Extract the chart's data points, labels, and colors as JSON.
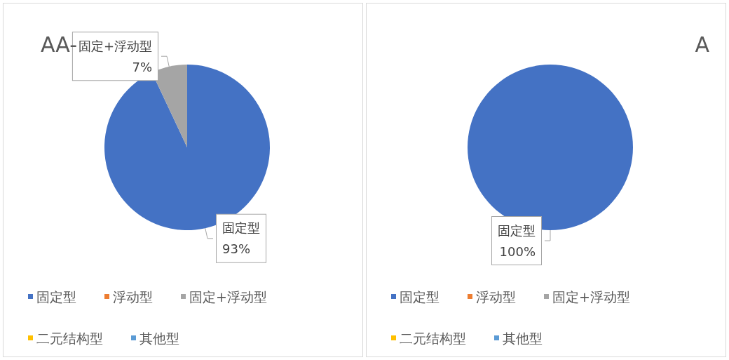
{
  "chart_data": [
    {
      "type": "pie",
      "title": "AA-",
      "categories": [
        "固定型",
        "浮动型",
        "固定+浮动型",
        "二元结构型",
        "其他型"
      ],
      "values": [
        93,
        0,
        7,
        0,
        0
      ],
      "colors": [
        "#4472c4",
        "#ed7d31",
        "#a5a5a5",
        "#ffc000",
        "#5b9bd5"
      ],
      "value_labels": [
        "93%",
        null,
        "7%",
        null,
        null
      ],
      "legend": "bottom"
    },
    {
      "type": "pie",
      "title": "A",
      "categories": [
        "固定型",
        "浮动型",
        "固定+浮动型",
        "二元结构型",
        "其他型"
      ],
      "values": [
        100,
        0,
        0,
        0,
        0
      ],
      "colors": [
        "#4472c4",
        "#ed7d31",
        "#a5a5a5",
        "#ffc000",
        "#5b9bd5"
      ],
      "value_labels": [
        "100%",
        null,
        null,
        null,
        null
      ],
      "legend": "bottom"
    }
  ]
}
